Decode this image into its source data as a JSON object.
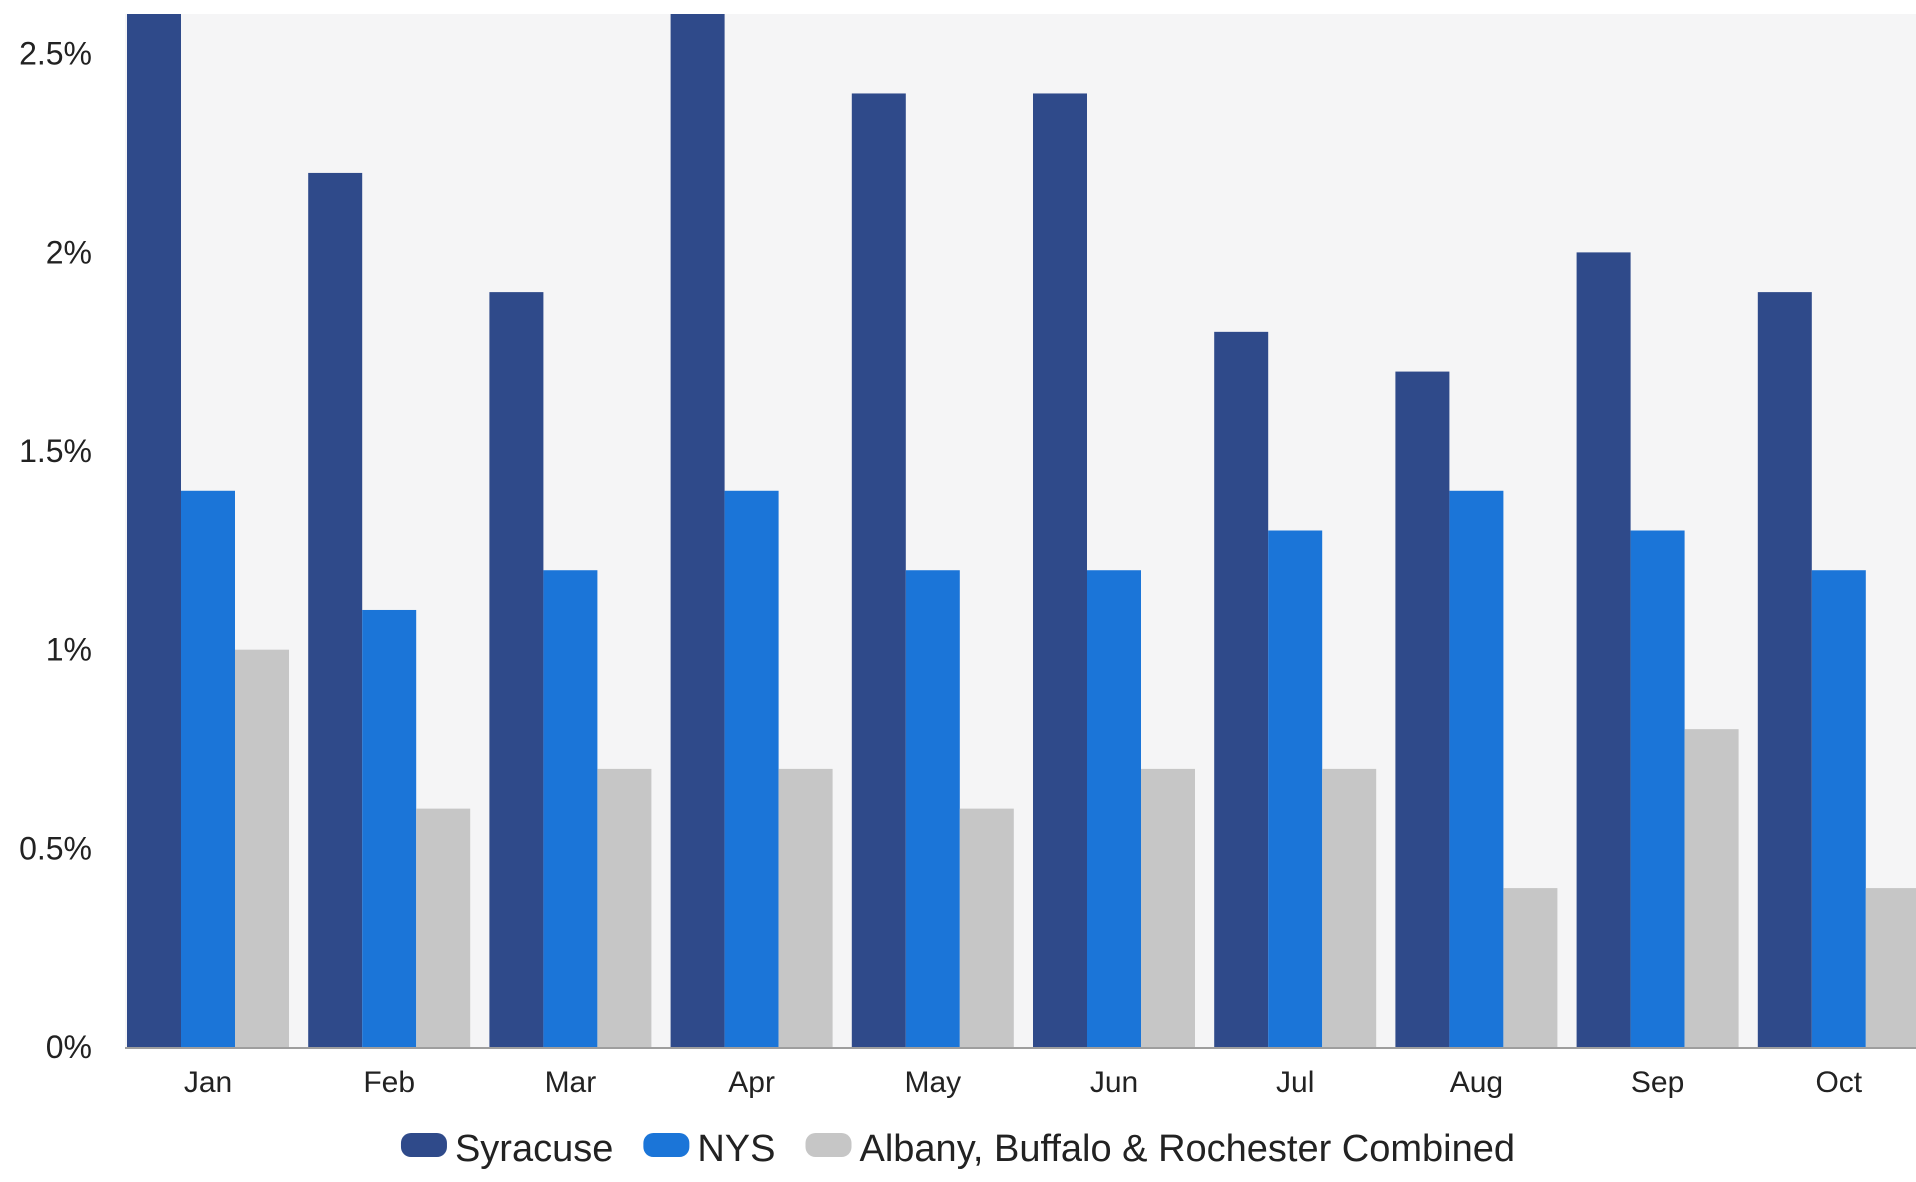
{
  "chart_data": {
    "type": "bar",
    "categories": [
      "Jan",
      "Feb",
      "Mar",
      "Apr",
      "May",
      "Jun",
      "Jul",
      "Aug",
      "Sep",
      "Oct"
    ],
    "series": [
      {
        "name": "Syracuse",
        "color": "#2f4a8a",
        "values": [
          2.6,
          2.2,
          1.9,
          2.6,
          2.4,
          2.4,
          1.8,
          1.7,
          2.0,
          1.9
        ]
      },
      {
        "name": "NYS",
        "color": "#1b75d8",
        "values": [
          1.4,
          1.1,
          1.2,
          1.4,
          1.2,
          1.2,
          1.3,
          1.4,
          1.3,
          1.2
        ]
      },
      {
        "name": "Albany, Buffalo & Rochester Combined",
        "color": "#c6c6c6",
        "values": [
          1.0,
          0.6,
          0.7,
          0.7,
          0.6,
          0.7,
          0.7,
          0.4,
          0.8,
          0.4
        ]
      }
    ],
    "y_ticks": [
      "0%",
      "0.5%",
      "1%",
      "1.5%",
      "2%",
      "2.5%"
    ],
    "y_tick_values": [
      0,
      0.5,
      1,
      1.5,
      2,
      2.5
    ],
    "ylim": [
      0,
      2.6
    ],
    "grid": false,
    "legend_position": "bottom",
    "plot_background": "#f5f5f6"
  }
}
